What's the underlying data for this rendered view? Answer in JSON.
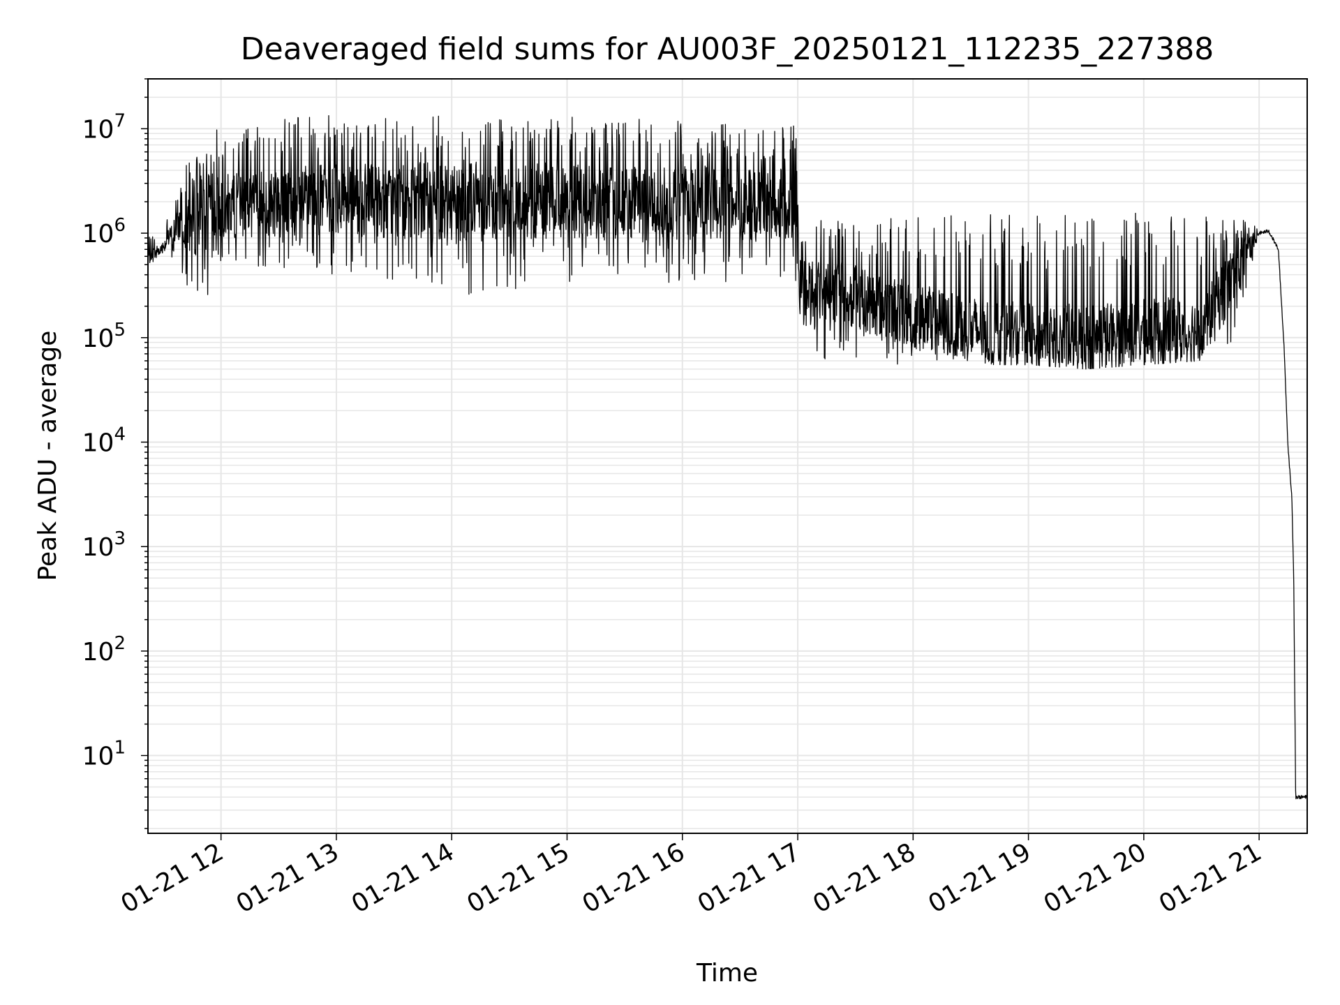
{
  "chart_data": {
    "type": "line",
    "title": "Deaveraged field sums for AU003F_20250121_112235_227388",
    "xlabel": "Time",
    "ylabel": "Peak ADU - average",
    "yscale": "log",
    "ylim": [
      1.8,
      30000000
    ],
    "xlim": [
      "01-21 11:22",
      "01-21 21:25"
    ],
    "grid": true,
    "line_color": "#000000",
    "grid_color": "#e6e6e6",
    "x_ticks": [
      "01-21 12",
      "01-21 13",
      "01-21 14",
      "01-21 15",
      "01-21 16",
      "01-21 17",
      "01-21 18",
      "01-21 19",
      "01-21 20",
      "01-21 21"
    ],
    "y_ticks": [
      {
        "base": "10",
        "exp": "1",
        "value": 10
      },
      {
        "base": "10",
        "exp": "2",
        "value": 100
      },
      {
        "base": "10",
        "exp": "3",
        "value": 1000
      },
      {
        "base": "10",
        "exp": "4",
        "value": 10000
      },
      {
        "base": "10",
        "exp": "5",
        "value": 100000
      },
      {
        "base": "10",
        "exp": "6",
        "value": 1000000
      },
      {
        "base": "10",
        "exp": "7",
        "value": 10000000
      }
    ],
    "series": [
      {
        "x": [
          "01-21 11:22",
          "01-21 11:30",
          "01-21 11:38",
          "01-21 11:45",
          "01-21 11:52",
          "01-21 12:00",
          "01-21 12:30",
          "01-21 13:00",
          "01-21 13:30",
          "01-21 14:00",
          "01-21 14:30",
          "01-21 15:00",
          "01-21 15:30",
          "01-21 16:00",
          "01-21 16:30",
          "01-21 16:59",
          "01-21 17:01",
          "01-21 17:15",
          "01-21 17:30",
          "01-21 18:00",
          "01-21 18:30",
          "01-21 19:00",
          "01-21 19:30",
          "01-21 20:00",
          "01-21 20:30",
          "01-21 20:50",
          "01-21 21:00",
          "01-21 21:05",
          "01-21 21:10",
          "01-21 21:13",
          "01-21 21:15",
          "01-21 21:17",
          "01-21 21:18",
          "01-21 21:19",
          "01-21 21:25"
        ],
        "values": [
          600000,
          750000,
          1200000,
          1400000,
          1600000,
          1800000,
          2000000,
          2100000,
          2000000,
          2100000,
          2000000,
          2000000,
          1900000,
          2000000,
          1900000,
          1900000,
          300000,
          280000,
          250000,
          160000,
          120000,
          100000,
          100000,
          110000,
          120000,
          500000,
          1000000,
          1050000,
          700000,
          80000,
          9000,
          3000,
          500,
          4,
          4
        ],
        "spike_max": [
          900000,
          1100000,
          2500000,
          7000000,
          9000000,
          12000000,
          13000000,
          13500000,
          13000000,
          14500000,
          13500000,
          13000000,
          12500000,
          12000000,
          11500000,
          11000000,
          1400000,
          1400000,
          1300000,
          1500000,
          1500000,
          1550000,
          1550000,
          1600000,
          1550000,
          1500000,
          1100000,
          1050000,
          700000,
          80000,
          9000,
          3000,
          500,
          4,
          4
        ],
        "spike_min": [
          500000,
          600000,
          500000,
          140000,
          200000,
          500000,
          450000,
          400000,
          350000,
          250000,
          280000,
          300000,
          350000,
          300000,
          350000,
          350000,
          70000,
          60000,
          55000,
          55000,
          55000,
          55000,
          50000,
          55000,
          60000,
          80000,
          900000,
          950000,
          600000,
          80000,
          9000,
          3000,
          500,
          4,
          4
        ]
      }
    ]
  }
}
